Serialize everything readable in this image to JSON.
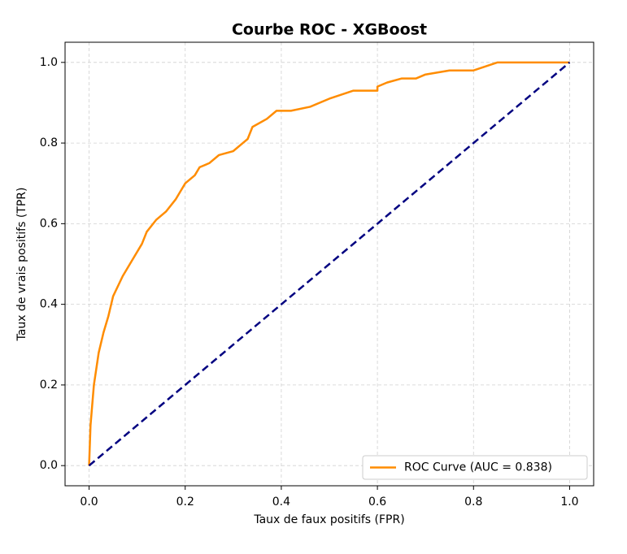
{
  "chart_data": {
    "type": "line",
    "title": "Courbe ROC - XGBoost",
    "x_label": "Taux de faux positifs (FPR)",
    "y_label": "Taux de vrais positifs (TPR)",
    "xlim": [
      -0.05,
      1.05
    ],
    "ylim": [
      -0.05,
      1.05
    ],
    "xticks": [
      {
        "value": 0,
        "label": "0.0"
      },
      0.2,
      0.4,
      0.6,
      0.8,
      {
        "value": 1,
        "label": "1.0"
      }
    ],
    "yticks": [
      {
        "value": 0,
        "label": "0.0"
      },
      0.2,
      0.4,
      0.6,
      0.8,
      {
        "value": 1,
        "label": "1.0"
      }
    ],
    "grid": true,
    "legend": "lower right",
    "series": [
      {
        "name": "ROC Curve (AUC = 0.838)",
        "color": "#ff8c00",
        "x": [
          0,
          0.003,
          0.01,
          0.02,
          0.03,
          0.04,
          0.05,
          0.07,
          0.09,
          0.11,
          0.12,
          0.14,
          0.16,
          0.18,
          0.2,
          0.22,
          0.23,
          0.25,
          0.27,
          0.3,
          0.32,
          0.33,
          0.34,
          0.37,
          0.39,
          0.42,
          0.46,
          0.5,
          0.55,
          0.6,
          0.6,
          0.62,
          0.65,
          0.68,
          0.7,
          0.75,
          0.8,
          0.85,
          1
        ],
        "values": [
          0,
          0.1,
          0.2,
          0.28,
          0.33,
          0.37,
          0.42,
          0.47,
          0.51,
          0.55,
          0.58,
          0.61,
          0.63,
          0.66,
          0.7,
          0.72,
          0.74,
          0.75,
          0.77,
          0.78,
          0.8,
          0.81,
          0.84,
          0.86,
          0.88,
          0.88,
          0.89,
          0.91,
          0.93,
          0.93,
          0.94,
          0.95,
          0.96,
          0.96,
          0.97,
          0.98,
          0.98,
          1,
          1
        ]
      }
    ],
    "reference_line": {
      "x": [
        0,
        1
      ],
      "values": [
        0,
        1
      ],
      "color": "#000080",
      "dashed": true
    }
  }
}
